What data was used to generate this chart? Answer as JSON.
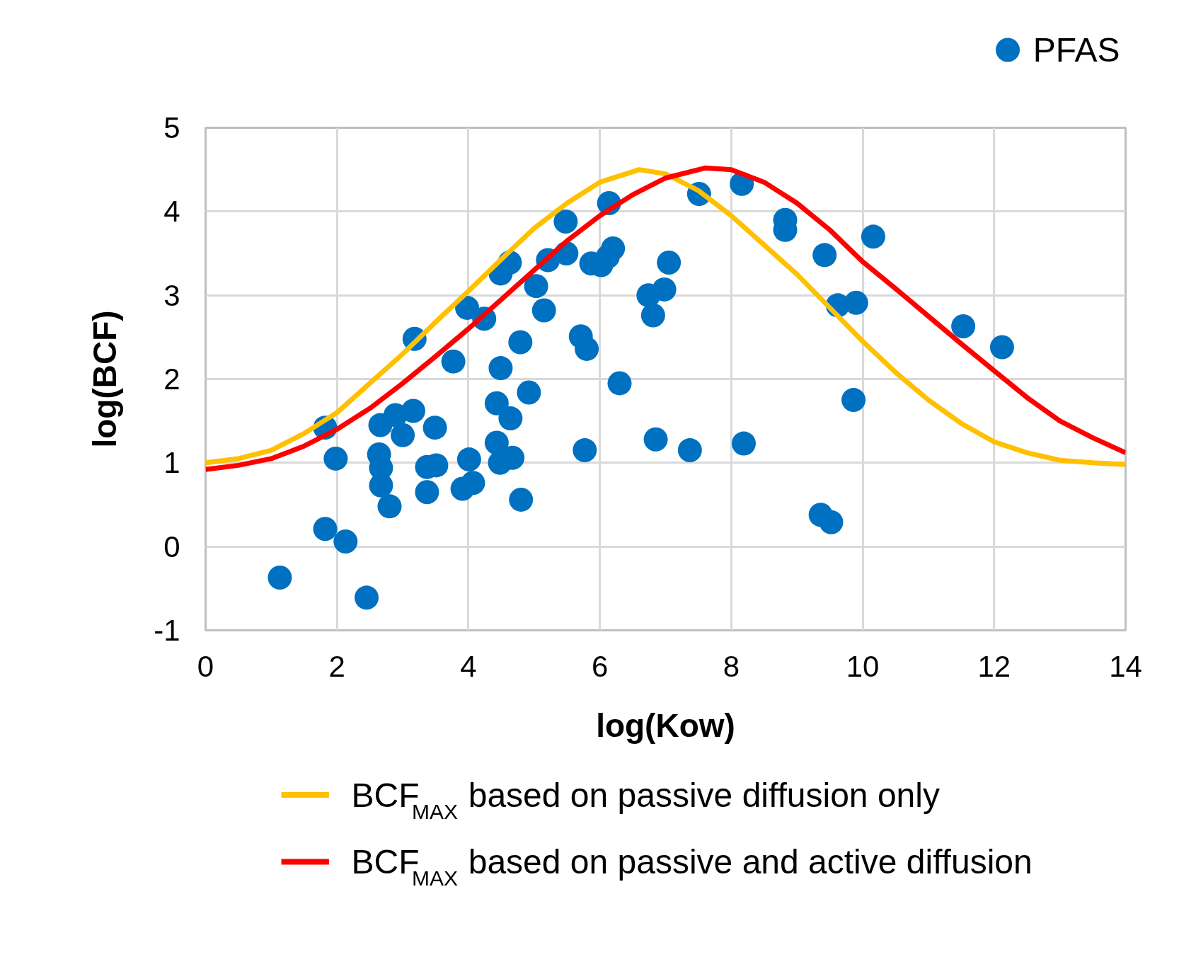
{
  "chart_data": {
    "type": "scatter",
    "xlabel": "log(Kow)",
    "ylabel": "log(BCF)",
    "xlim": [
      0,
      14
    ],
    "ylim": [
      -1,
      5
    ],
    "xticks": [
      0,
      2,
      4,
      6,
      8,
      10,
      12,
      14
    ],
    "yticks": [
      -1,
      0,
      1,
      2,
      3,
      4,
      5
    ],
    "grid": true,
    "legend": "bottom",
    "marker": "circle",
    "series": [
      {
        "name": "PFAS",
        "color": "#0070c0",
        "x": [
          1.13,
          1.82,
          2.13,
          2.45,
          1.82,
          1.98,
          3.18,
          3.77,
          3.98,
          4.24,
          4.49,
          4.63,
          4.49,
          4.79,
          5.03,
          5.15,
          5.21,
          5.48,
          5.49,
          4.92,
          4.43,
          4.64,
          4.43,
          4.48,
          4.67,
          4.8,
          4.01,
          3.91,
          4.07,
          3.37,
          3.37,
          3.51,
          2.8,
          2.67,
          2.67,
          2.64,
          2.66,
          2.89,
          3.0,
          3.16,
          3.49,
          5.71,
          5.8,
          5.77,
          5.87,
          6.02,
          6.12,
          6.2,
          6.14,
          6.3,
          6.74,
          6.81,
          6.98,
          7.05,
          6.85,
          7.37,
          7.51,
          8.16,
          8.19,
          8.82,
          8.82,
          9.42,
          9.62,
          9.9,
          10.16,
          9.86,
          9.36,
          9.52,
          11.53,
          12.12
        ],
        "values": [
          -0.37,
          0.21,
          0.06,
          -0.61,
          1.42,
          1.05,
          2.48,
          2.21,
          2.85,
          2.72,
          3.26,
          3.39,
          2.13,
          2.44,
          3.11,
          2.82,
          3.42,
          3.88,
          3.5,
          1.84,
          1.71,
          1.53,
          1.24,
          1.0,
          1.06,
          0.56,
          1.04,
          0.69,
          0.76,
          0.65,
          0.95,
          0.97,
          0.48,
          0.73,
          0.94,
          1.1,
          1.45,
          1.57,
          1.33,
          1.62,
          1.42,
          2.51,
          2.36,
          1.15,
          3.38,
          3.36,
          3.46,
          3.56,
          4.1,
          1.95,
          3.0,
          2.76,
          3.07,
          3.39,
          1.28,
          1.15,
          4.21,
          4.33,
          1.23,
          3.9,
          3.78,
          3.48,
          2.88,
          2.91,
          3.7,
          1.75,
          0.38,
          0.29,
          2.63,
          2.38
        ]
      },
      {
        "name": "BCF$_{MAX}$ based on passive diffusion only",
        "color": "#ffc000",
        "type": "line",
        "marker": "none",
        "x": [
          0,
          0.5,
          1,
          1.5,
          2,
          2.5,
          3,
          3.5,
          4,
          4.5,
          5,
          5.5,
          6,
          6.6,
          7,
          7.5,
          8,
          8.5,
          9,
          9.5,
          10,
          10.5,
          11,
          11.5,
          12,
          12.5,
          13,
          13.5,
          14
        ],
        "values": [
          1.0,
          1.05,
          1.15,
          1.35,
          1.6,
          1.95,
          2.3,
          2.68,
          3.05,
          3.43,
          3.8,
          4.1,
          4.35,
          4.5,
          4.45,
          4.25,
          3.95,
          3.6,
          3.25,
          2.85,
          2.45,
          2.08,
          1.75,
          1.47,
          1.25,
          1.12,
          1.03,
          1.0,
          0.98
        ]
      },
      {
        "name": "BCF$_{MAX}$ based on passive and active diffusion",
        "color": "#ff0000",
        "type": "line",
        "marker": "none",
        "x": [
          0,
          0.5,
          1,
          1.5,
          2,
          2.5,
          3,
          3.5,
          4,
          4.5,
          5,
          5.5,
          6,
          6.5,
          7,
          7.6,
          8,
          8.5,
          9,
          9.5,
          10,
          10.5,
          11,
          11.5,
          12,
          12.5,
          13,
          13.5,
          14
        ],
        "values": [
          0.92,
          0.97,
          1.05,
          1.2,
          1.4,
          1.65,
          1.95,
          2.27,
          2.6,
          2.95,
          3.3,
          3.65,
          3.95,
          4.2,
          4.4,
          4.52,
          4.5,
          4.35,
          4.1,
          3.78,
          3.4,
          3.08,
          2.75,
          2.42,
          2.1,
          1.78,
          1.5,
          1.3,
          1.12
        ]
      }
    ]
  }
}
